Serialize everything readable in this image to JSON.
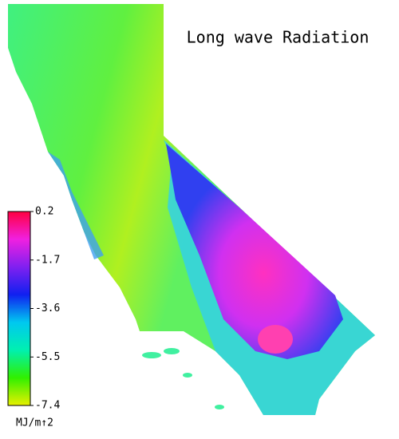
{
  "title": "Long wave Radiation",
  "colorbar": {
    "lim": [
      -7.4,
      0.2
    ],
    "ticks": [
      0.2,
      -1.7,
      -3.6,
      -5.5,
      -7.4
    ],
    "unit": "MJ/m↑2",
    "colors": [
      "#e8f000",
      "#30f000",
      "#00f0b0",
      "#00c8f0",
      "#1020f0",
      "#8020f0",
      "#f020e0",
      "#ff0040"
    ]
  }
}
